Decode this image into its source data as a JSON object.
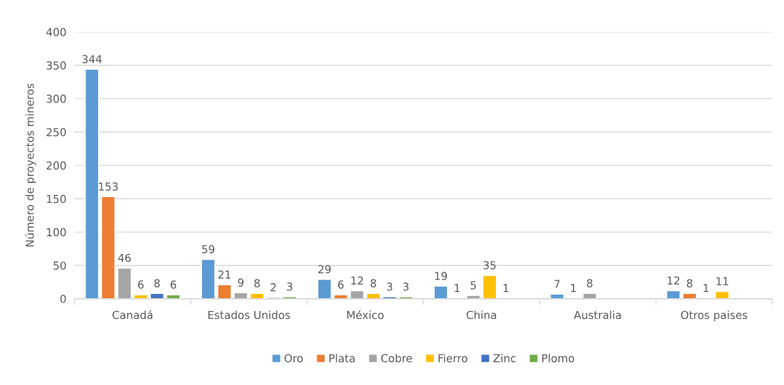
{
  "chart_data": {
    "type": "bar",
    "ylabel": "Número de proyectos mineros",
    "categories": [
      "Canadá",
      "Estados Unidos",
      "México",
      "China",
      "Australia",
      "Otros paises"
    ],
    "series": [
      {
        "name": "Oro",
        "color": "#5b9bd5",
        "values": [
          344,
          59,
          29,
          19,
          7,
          12
        ]
      },
      {
        "name": "Plata",
        "color": "#ed7d31",
        "values": [
          153,
          21,
          6,
          1,
          1,
          8
        ]
      },
      {
        "name": "Cobre",
        "color": "#a5a5a5",
        "values": [
          46,
          9,
          12,
          5,
          8,
          1
        ]
      },
      {
        "name": "Fierro",
        "color": "#ffc000",
        "values": [
          6,
          8,
          8,
          35,
          null,
          11
        ]
      },
      {
        "name": "Zinc",
        "color": "#4472c4",
        "values": [
          8,
          2,
          3,
          1,
          null,
          null
        ]
      },
      {
        "name": "Plomo",
        "color": "#70ad47",
        "values": [
          6,
          3,
          3,
          null,
          null,
          null
        ]
      }
    ],
    "ylim": [
      0,
      400
    ],
    "yticks": [
      0,
      50,
      100,
      150,
      200,
      250,
      300,
      350,
      400
    ],
    "grid": "y",
    "legend": "bottom",
    "data_labels": true
  }
}
